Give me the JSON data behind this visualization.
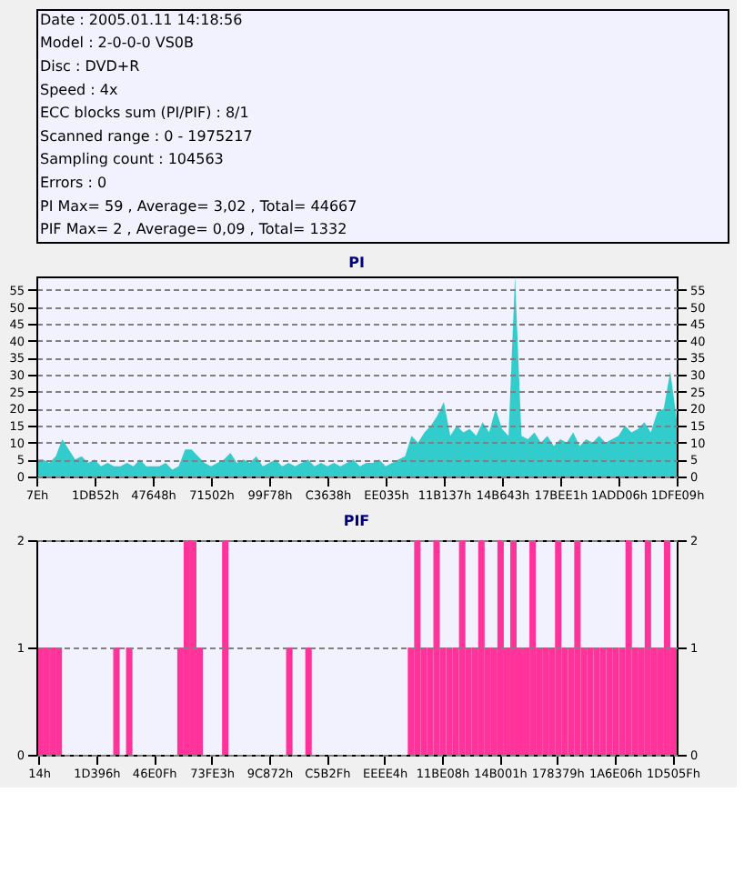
{
  "chart_data": [
    {
      "type": "other",
      "annotations": [
        "Date : 2005.01.11 14:18:56",
        "Model : 2-0-0-0 VS0B",
        "Disc : DVD+R",
        "Speed : 4x",
        "ECC blocks sum (PI/PIF) : 8/1",
        "Scanned range : 0 - 1975217",
        "Sampling count : 104563",
        "Errors : 0",
        "PI Max= 59 , Average= 3,02 , Total= 44667",
        "PIF Max= 2 , Average= 0,09 , Total= 1332"
      ]
    },
    {
      "type": "area",
      "title": "PI",
      "grid": "y",
      "legend": false,
      "marker": "none",
      "categories": [
        "7Eh",
        null,
        null,
        null,
        null,
        null,
        null,
        null,
        null,
        "1DB52h",
        null,
        null,
        null,
        null,
        null,
        null,
        null,
        null,
        "47648h",
        null,
        null,
        null,
        null,
        null,
        null,
        null,
        null,
        "71502h",
        null,
        null,
        null,
        null,
        null,
        null,
        null,
        null,
        "99F78h",
        null,
        null,
        null,
        null,
        null,
        null,
        null,
        null,
        "C3638h",
        null,
        null,
        null,
        null,
        null,
        null,
        null,
        null,
        "EE035h",
        null,
        null,
        null,
        null,
        null,
        null,
        null,
        null,
        "11B137h",
        null,
        null,
        null,
        null,
        null,
        null,
        null,
        null,
        "14B643h",
        null,
        null,
        null,
        null,
        null,
        null,
        null,
        null,
        "17BEE1h",
        null,
        null,
        null,
        null,
        null,
        null,
        null,
        null,
        "1ADD06h",
        null,
        null,
        null,
        null,
        null,
        null,
        null,
        null,
        "1DFE09h"
      ],
      "series": [
        {
          "color": "#33cccc",
          "values": [
            5,
            5,
            4,
            6,
            11,
            8,
            5,
            6,
            4,
            5,
            3,
            4,
            3,
            3,
            4,
            3,
            5,
            3,
            3,
            3,
            4,
            2,
            3,
            8,
            8,
            6,
            4,
            3,
            4,
            5,
            7,
            4,
            5,
            4,
            6,
            3,
            4,
            5,
            3,
            4,
            3,
            4,
            5,
            3,
            4,
            3,
            4,
            3,
            4,
            5,
            3,
            4,
            4,
            5,
            3,
            4,
            5,
            6,
            12,
            10,
            13,
            15,
            18,
            22,
            12,
            15,
            13,
            14,
            12,
            16,
            13,
            20,
            14,
            12,
            59,
            12,
            11,
            13,
            10,
            12,
            9,
            11,
            10,
            13,
            9,
            11,
            10,
            12,
            10,
            11,
            12,
            15,
            13,
            14,
            16,
            13,
            19,
            20,
            31,
            17
          ]
        }
      ],
      "ylim": [
        0,
        59
      ],
      "yticks": [
        0,
        5,
        10,
        15,
        20,
        25,
        30,
        35,
        40,
        45,
        50,
        55
      ],
      "y2lim": [
        0,
        59
      ],
      "y2ticks": [
        0,
        5,
        10,
        15,
        20,
        25,
        30,
        35,
        40,
        45,
        50,
        55
      ]
    },
    {
      "type": "bar",
      "title": "PIF",
      "grid": "y",
      "legend": false,
      "marker": "none",
      "categories": [
        "14h",
        null,
        null,
        null,
        null,
        null,
        null,
        null,
        null,
        "1D396h",
        null,
        null,
        null,
        null,
        null,
        null,
        null,
        null,
        "46E0Fh",
        null,
        null,
        null,
        null,
        null,
        null,
        null,
        null,
        "73FE3h",
        null,
        null,
        null,
        null,
        null,
        null,
        null,
        null,
        "9C872h",
        null,
        null,
        null,
        null,
        null,
        null,
        null,
        null,
        "C5B2Fh",
        null,
        null,
        null,
        null,
        null,
        null,
        null,
        null,
        "EEEE4h",
        null,
        null,
        null,
        null,
        null,
        null,
        null,
        null,
        "11BE08h",
        null,
        null,
        null,
        null,
        null,
        null,
        null,
        null,
        "14B001h",
        null,
        null,
        null,
        null,
        null,
        null,
        null,
        null,
        "178379h",
        null,
        null,
        null,
        null,
        null,
        null,
        null,
        null,
        "1A6E06h",
        null,
        null,
        null,
        null,
        null,
        null,
        null,
        null,
        "1D505Fh"
      ],
      "series": [
        {
          "color": "#ff3399",
          "values": [
            1,
            1,
            1,
            1,
            0,
            0,
            0,
            0,
            0,
            0,
            0,
            0,
            1,
            0,
            1,
            0,
            0,
            0,
            0,
            0,
            0,
            0,
            1,
            2,
            2,
            1,
            0,
            0,
            0,
            2,
            0,
            0,
            0,
            0,
            0,
            0,
            0,
            0,
            0,
            1,
            0,
            0,
            1,
            0,
            0,
            0,
            0,
            0,
            0,
            0,
            0,
            0,
            0,
            0,
            0,
            0,
            0,
            0,
            1,
            2,
            1,
            1,
            2,
            1,
            1,
            1,
            2,
            1,
            1,
            2,
            1,
            1,
            2,
            1,
            2,
            1,
            1,
            2,
            1,
            1,
            1,
            2,
            1,
            1,
            2,
            1,
            1,
            1,
            1,
            1,
            1,
            1,
            2,
            1,
            1,
            2,
            1,
            1,
            2,
            1
          ]
        }
      ],
      "ylim": [
        0,
        2
      ],
      "yticks": [
        0,
        1,
        2
      ],
      "y2lim": [
        0,
        2
      ],
      "y2ticks": [
        0,
        1,
        2
      ]
    }
  ]
}
